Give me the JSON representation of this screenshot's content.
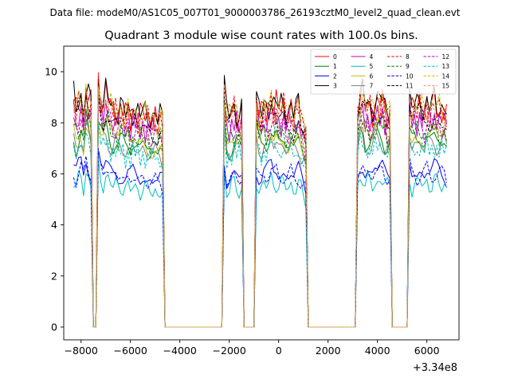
{
  "chart_data": {
    "type": "line",
    "suptitle": "Data file: modeM0/AS1C05_007T01_9000003786_26193cztM0_level2_quad_clean.evt",
    "title": "Quadrant 3 module wise count rates with 100.0s bins.",
    "xlabel": "",
    "ylabel": "",
    "x_offset_label": "+3.34e8",
    "xlim": [
      -8700,
      7300
    ],
    "ylim": [
      -0.5,
      11
    ],
    "xticks": [
      -8000,
      -6000,
      -4000,
      -2000,
      0,
      2000,
      4000,
      6000
    ],
    "xtick_labels": [
      "−8000",
      "−6000",
      "−4000",
      "−2000",
      "0",
      "2000",
      "4000",
      "6000"
    ],
    "yticks": [
      0,
      2,
      4,
      6,
      8,
      10
    ],
    "ytick_labels": [
      "0",
      "2",
      "4",
      "6",
      "8",
      "10"
    ],
    "legend_position": "top-right",
    "bin_width_s": 100,
    "x_start": -8300,
    "x_end": 6800,
    "segments": [
      {
        "start": -8300,
        "end": -7600,
        "shape": [
          1.0,
          0.95,
          0.98,
          1.0,
          0.93,
          1.05,
          1.0,
          0.97
        ]
      },
      {
        "start": -7300,
        "end": -4700,
        "shape": [
          1.08,
          1.0,
          0.97,
          1.02,
          1.0,
          0.97,
          0.95,
          0.96,
          0.94,
          0.96,
          0.95,
          0.93,
          0.94,
          0.92,
          0.95,
          0.94,
          0.93,
          0.92,
          0.94,
          0.93,
          0.92,
          0.93,
          0.91,
          0.92,
          0.9,
          0.92,
          0.9
        ]
      },
      {
        "start": -2200,
        "end": -1500,
        "shape": [
          1.05,
          0.92,
          0.93,
          0.95,
          0.96,
          0.94,
          0.92,
          0.93
        ]
      },
      {
        "start": -900,
        "end": 1100,
        "shape": [
          1.0,
          0.95,
          0.93,
          0.96,
          0.95,
          0.97,
          1.0,
          0.96,
          0.98,
          0.95,
          0.96,
          0.97,
          0.95,
          0.94,
          0.96,
          0.93,
          0.95,
          0.97,
          0.92,
          0.88,
          0.85
        ]
      },
      {
        "start": 3200,
        "end": 4500,
        "shape": [
          0.95,
          1.0,
          1.02,
          0.97,
          0.98,
          0.96,
          0.95,
          0.98,
          0.97,
          0.99,
          1.0,
          0.96,
          0.94,
          0.95
        ]
      },
      {
        "start": 5300,
        "end": 6800,
        "shape": [
          1.0,
          0.95,
          0.97,
          0.96,
          0.98,
          0.97,
          0.95,
          0.98,
          0.96,
          0.97,
          0.99,
          0.97,
          0.96,
          0.95,
          0.96,
          0.94
        ]
      }
    ],
    "series": [
      {
        "name": "0",
        "color": "#ff0000",
        "dash": "solid",
        "level": 8.9
      },
      {
        "name": "1",
        "color": "#008000",
        "dash": "solid",
        "level": 7.6
      },
      {
        "name": "2",
        "color": "#0000ff",
        "dash": "solid",
        "level": 6.3
      },
      {
        "name": "3",
        "color": "#000000",
        "dash": "solid",
        "level": 9.0
      },
      {
        "name": "4",
        "color": "#bf00bf",
        "dash": "solid",
        "level": 8.4
      },
      {
        "name": "5",
        "color": "#00bfbf",
        "dash": "solid",
        "level": 5.8
      },
      {
        "name": "6",
        "color": "#bfbf00",
        "dash": "solid",
        "level": 7.8
      },
      {
        "name": "7",
        "color": "#808080",
        "dash": "solid",
        "level": 7.4
      },
      {
        "name": "8",
        "color": "#ff0000",
        "dash": "dashed",
        "level": 8.8
      },
      {
        "name": "9",
        "color": "#008000",
        "dash": "dashed",
        "level": 7.9
      },
      {
        "name": "10",
        "color": "#0000ff",
        "dash": "dashed",
        "level": 6.2
      },
      {
        "name": "11",
        "color": "#000000",
        "dash": "dashed",
        "level": 8.5
      },
      {
        "name": "12",
        "color": "#bf00bf",
        "dash": "dashed",
        "level": 8.2
      },
      {
        "name": "13",
        "color": "#00bfbf",
        "dash": "dashed",
        "level": 7.2
      },
      {
        "name": "14",
        "color": "#bfbf00",
        "dash": "dashed",
        "level": 8.9
      },
      {
        "name": "15",
        "color": "#e9967a",
        "dash": "dashed",
        "level": 8.6
      }
    ]
  }
}
